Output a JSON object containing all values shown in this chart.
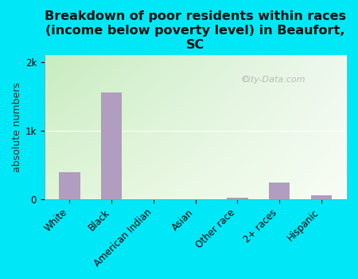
{
  "categories": [
    "White",
    "Black",
    "American Indian",
    "Asian",
    "Other race",
    "2+ races",
    "Hispanic"
  ],
  "values": [
    400,
    1550,
    0,
    0,
    30,
    250,
    60
  ],
  "bar_color": "#b09dc0",
  "title": "Breakdown of poor residents within races\n(income below poverty level) in Beaufort,\nSC",
  "ylabel": "absolute numbers",
  "ylim": [
    0,
    2100
  ],
  "yticks": [
    0,
    1000,
    2000
  ],
  "ytick_labels": [
    "0",
    "1k",
    "2k"
  ],
  "background_color": "#00e8f8",
  "plot_bg_color_topleft": "#c8ecc0",
  "plot_bg_color_topright": "#e8f5e8",
  "plot_bg_color_bottomleft": "#e8f5e2",
  "plot_bg_color_bottomright": "#f8fdf5",
  "title_fontsize": 11.5,
  "axis_label_fontsize": 9,
  "tick_fontsize": 8.5,
  "watermark_text": "City-Data.com",
  "bar_width": 0.5
}
